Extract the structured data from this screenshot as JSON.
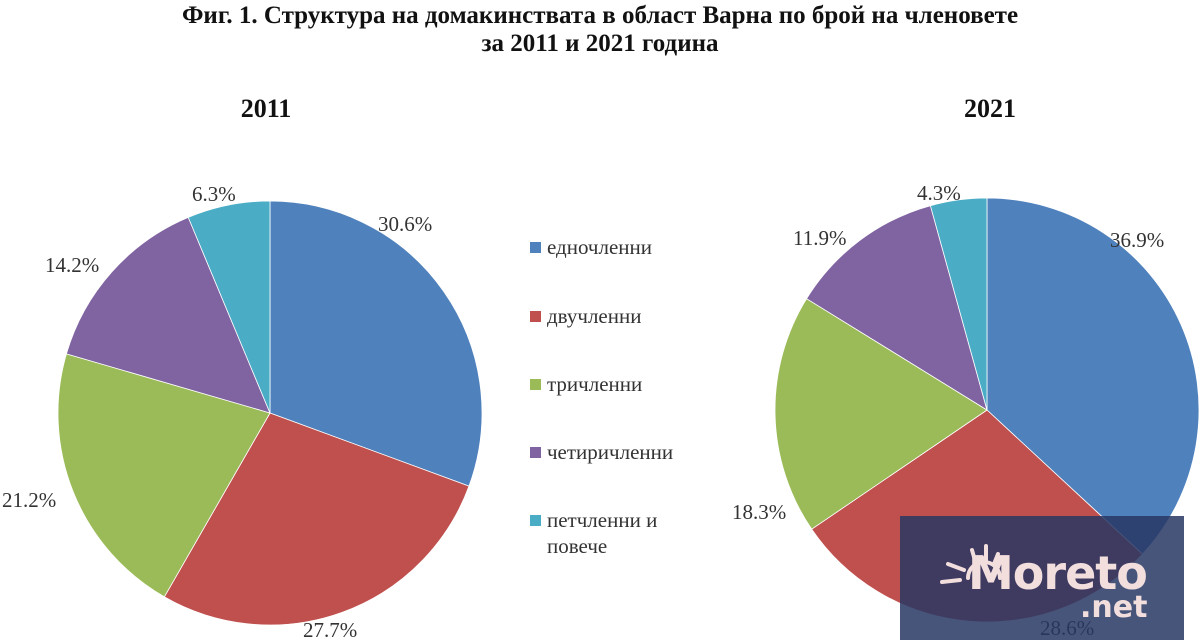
{
  "header": {
    "title_line1": "Фиг. 1. Структура на домакинствата в област Варна по брой на членовете",
    "title_line2": "за 2011 и 2021 година"
  },
  "legend": {
    "items": [
      {
        "label": "едночленни",
        "color": "#4F81BD"
      },
      {
        "label": "двучленни",
        "color": "#C0504D"
      },
      {
        "label": "тричленни",
        "color": "#9BBB59"
      },
      {
        "label": "четиричленни",
        "color": "#8064A2"
      },
      {
        "label": "петчленни и",
        "label2": "повече",
        "color": "#4BACC6"
      }
    ]
  },
  "watermark": {
    "brand": "Moreto",
    "suffix": ".net",
    "icon": "sun-icon"
  },
  "chart_data": [
    {
      "type": "pie",
      "title": "2011",
      "categories": [
        "едночленни",
        "двучленни",
        "тричленни",
        "четиричленни",
        "петчленни и повече"
      ],
      "values": [
        30.6,
        27.7,
        21.2,
        14.2,
        6.3
      ],
      "labels": [
        "30.6%",
        "27.7%",
        "21.2%",
        "14.2%",
        "6.3%"
      ],
      "colors": [
        "#4F81BD",
        "#C0504D",
        "#9BBB59",
        "#8064A2",
        "#4BACC6"
      ],
      "start_angle": "12 o'clock, clockwise",
      "legend_position": "center-between-charts"
    },
    {
      "type": "pie",
      "title": "2021",
      "categories": [
        "едночленни",
        "двучленни",
        "тричленни",
        "четиричленни",
        "петчленни и повече"
      ],
      "values": [
        36.9,
        28.6,
        18.3,
        11.9,
        4.3
      ],
      "labels": [
        "36.9%",
        "28.6%",
        "18.3%",
        "11.9%",
        "4.3%"
      ],
      "colors": [
        "#4F81BD",
        "#C0504D",
        "#9BBB59",
        "#8064A2",
        "#4BACC6"
      ],
      "start_angle": "12 o'clock, clockwise",
      "legend_position": "center-between-charts"
    }
  ]
}
